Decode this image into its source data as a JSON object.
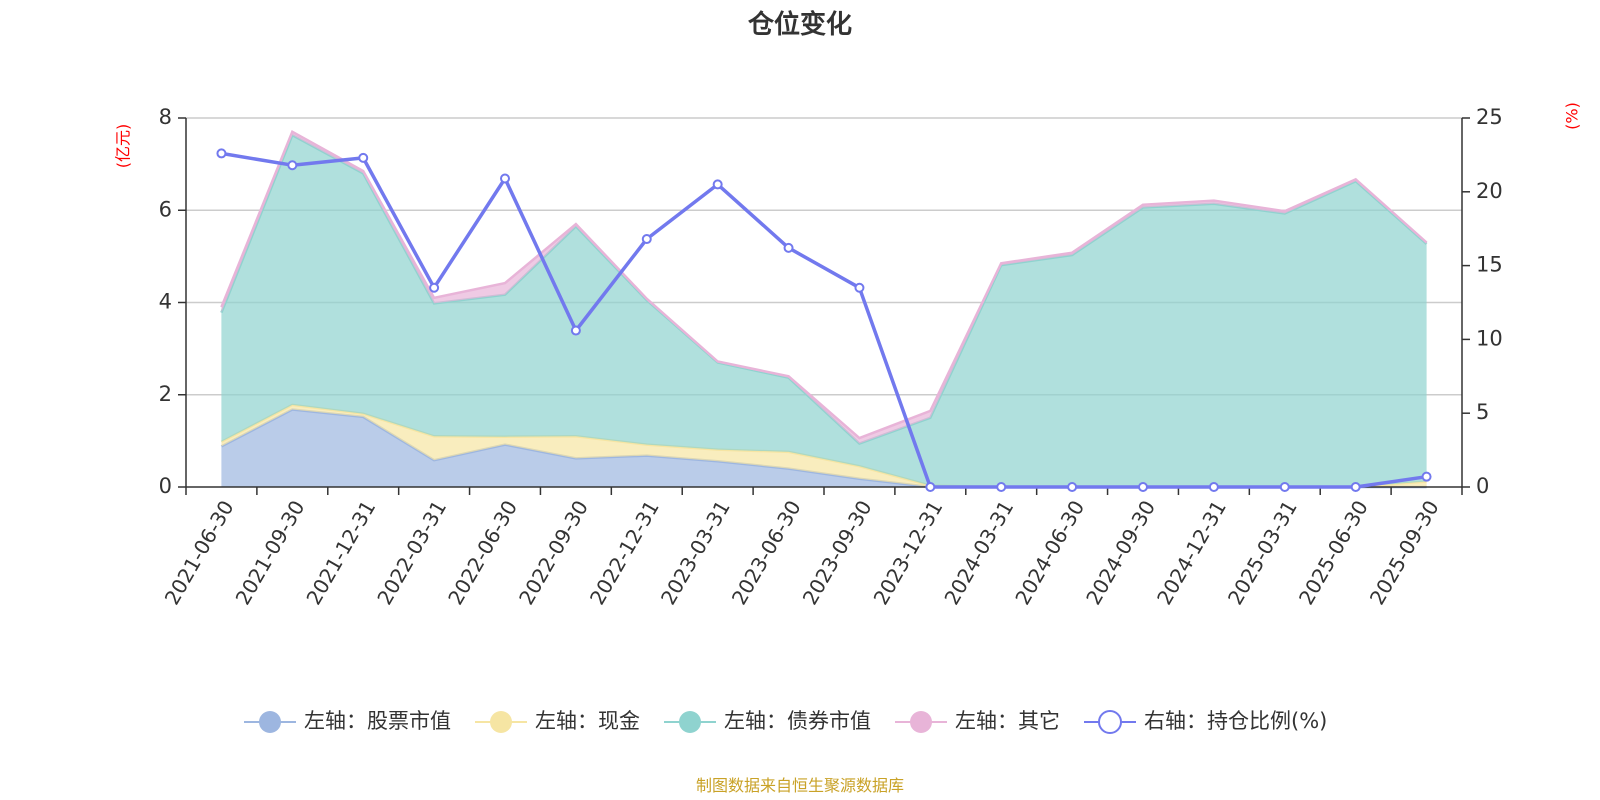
{
  "chart_data": {
    "type": "area",
    "title": "仓位变化",
    "left_axis_unit": "(亿元)",
    "right_axis_unit": "(%)",
    "categories": [
      "2021-06-30",
      "2021-09-30",
      "2021-12-31",
      "2022-03-31",
      "2022-06-30",
      "2022-09-30",
      "2022-12-31",
      "2023-03-31",
      "2023-06-30",
      "2023-09-30",
      "2023-12-31",
      "2024-03-31",
      "2024-06-30",
      "2024-09-30",
      "2024-12-31",
      "2025-03-31",
      "2025-06-30",
      "2025-09-30"
    ],
    "left_ylim": [
      0,
      8
    ],
    "left_ticks": [
      0,
      2,
      4,
      6,
      8
    ],
    "right_ylim": [
      0,
      25
    ],
    "right_ticks": [
      0,
      5,
      10,
      15,
      20,
      25
    ],
    "stacked": true,
    "series": [
      {
        "name": "左轴：股票市值",
        "axis": "left",
        "color": "#9db6e0",
        "values": [
          0.88,
          1.68,
          1.52,
          0.58,
          0.92,
          0.62,
          0.68,
          0.56,
          0.4,
          0.18,
          0.0,
          0.0,
          0.0,
          0.0,
          0.0,
          0.0,
          0.0,
          0.0
        ]
      },
      {
        "name": "左轴：现金",
        "axis": "left",
        "color": "#f6e5a3",
        "values": [
          0.1,
          0.1,
          0.07,
          0.52,
          0.17,
          0.48,
          0.24,
          0.25,
          0.36,
          0.27,
          0.03,
          0.0,
          0.0,
          0.0,
          0.0,
          0.0,
          0.0,
          0.12
        ]
      },
      {
        "name": "左轴：债券市值",
        "axis": "left",
        "color": "#8fd3cf",
        "values": [
          2.8,
          5.85,
          5.21,
          2.88,
          3.08,
          4.55,
          3.13,
          1.89,
          1.61,
          0.49,
          1.47,
          4.81,
          5.03,
          6.06,
          6.14,
          5.93,
          6.63,
          5.15
        ]
      },
      {
        "name": "左轴：其它",
        "axis": "left",
        "color": "#e8b4d8",
        "values": [
          0.12,
          0.07,
          0.05,
          0.12,
          0.25,
          0.05,
          0.03,
          0.02,
          0.03,
          0.12,
          0.15,
          0.04,
          0.05,
          0.06,
          0.07,
          0.05,
          0.04,
          0.03
        ]
      },
      {
        "name": "右轴：持仓比例(%)",
        "axis": "right",
        "type": "line",
        "color": "#7279ee",
        "values": [
          22.6,
          21.8,
          22.3,
          13.5,
          20.9,
          10.6,
          16.8,
          20.5,
          16.2,
          13.5,
          0,
          0,
          0,
          0,
          0,
          0,
          0,
          0.7
        ]
      }
    ],
    "legend_position": "bottom",
    "source_note": "制图数据来自恒生聚源数据库"
  }
}
